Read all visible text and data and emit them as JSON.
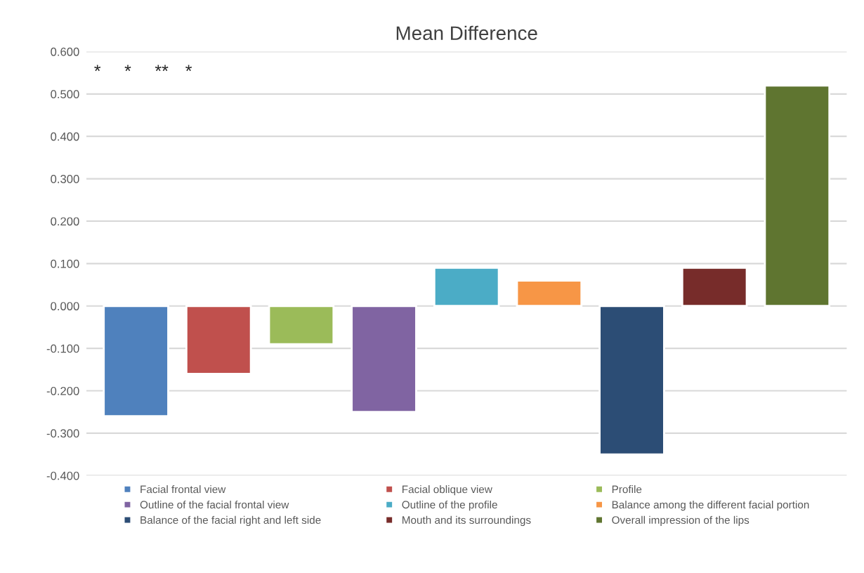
{
  "chart_data": {
    "type": "bar",
    "title": "Mean Difference",
    "categories": [
      null,
      null,
      null,
      null,
      null,
      null,
      null,
      null,
      null
    ],
    "series": [
      {
        "name": "Facial frontal view",
        "color": "#4f81bd",
        "values": [
          -0.26,
          null,
          null,
          null,
          null,
          null,
          null,
          null,
          null
        ]
      },
      {
        "name": "Facial oblique view",
        "color": "#c0504d",
        "values": [
          null,
          -0.16,
          null,
          null,
          null,
          null,
          null,
          null,
          null
        ]
      },
      {
        "name": "Profile",
        "color": "#9bbb59",
        "values": [
          null,
          null,
          -0.09,
          null,
          null,
          null,
          null,
          null,
          null
        ]
      },
      {
        "name": "Outline of the facial frontal view",
        "color": "#8064a2",
        "values": [
          null,
          null,
          null,
          -0.25,
          null,
          null,
          null,
          null,
          null
        ]
      },
      {
        "name": "Outline of the profile",
        "color": "#4bacc6",
        "values": [
          null,
          null,
          null,
          null,
          0.09,
          null,
          null,
          null,
          null
        ]
      },
      {
        "name": "Balance among the different facial portion",
        "color": "#f79646",
        "values": [
          null,
          null,
          null,
          null,
          null,
          0.06,
          null,
          null,
          null
        ]
      },
      {
        "name": "Balance of the facial right and left side",
        "color": "#2c4d75",
        "values": [
          null,
          null,
          null,
          null,
          null,
          null,
          -0.35,
          null,
          null
        ]
      },
      {
        "name": "Mouth and its surroundings",
        "color": "#772c2a",
        "values": [
          null,
          null,
          null,
          null,
          null,
          null,
          null,
          0.09,
          null
        ]
      },
      {
        "name": "Overall impression of the lips",
        "color": "#5f7530",
        "values": [
          null,
          null,
          null,
          null,
          null,
          null,
          null,
          null,
          0.52
        ]
      }
    ],
    "ylim": [
      -0.4,
      0.6
    ],
    "yticks": [
      {
        "value": -0.4,
        "label": "-0.400"
      },
      {
        "value": -0.3,
        "label": "-0.300"
      },
      {
        "value": -0.2,
        "label": "-0.200"
      },
      {
        "value": -0.1,
        "label": "-0.100"
      },
      {
        "value": 0,
        "label": "0.000"
      },
      {
        "value": 0.1,
        "label": "0.100"
      },
      {
        "value": 0.2,
        "label": "0.200"
      },
      {
        "value": 0.3,
        "label": "0.300"
      },
      {
        "value": 0.4,
        "label": "0.400"
      },
      {
        "value": 0.5,
        "label": "0.500"
      },
      {
        "value": 0.6,
        "label": "0.600"
      }
    ],
    "annotations": [
      "*",
      "*",
      "**",
      "*"
    ],
    "grid": "y",
    "legend": "bottom",
    "tick_labels": "y"
  }
}
